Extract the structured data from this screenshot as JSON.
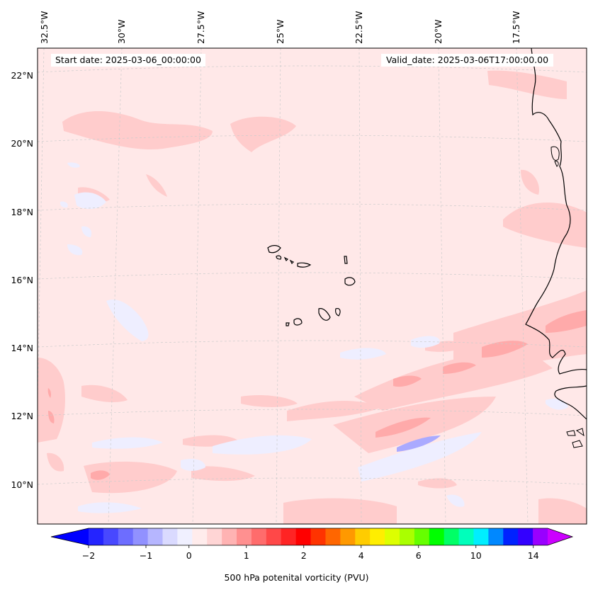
{
  "header": {
    "start_date": "Start date: 2025-03-06_00:00:00",
    "valid_date": "Valid_date: 2025-03-06T17:00:00.00"
  },
  "longitude_labels": [
    "32.5°W",
    "30°W",
    "27.5°W",
    "25°W",
    "22.5°W",
    "20°W",
    "17.5°W"
  ],
  "latitude_labels": [
    "22°N",
    "20°N",
    "18°N",
    "16°N",
    "14°N",
    "12°N",
    "10°N"
  ],
  "colorbar": {
    "label": "500 hPa potenital vorticity (PVU)",
    "tick_labels": [
      "−2",
      "−1",
      "0",
      "1",
      "2",
      "4",
      "6",
      "10",
      "14"
    ],
    "colors": [
      "#0000ff",
      "#2424ff",
      "#4848ff",
      "#6d6dff",
      "#9191ff",
      "#b6b6ff",
      "#dadaff",
      "#f0f0ff",
      "#ffecec",
      "#ffd5d5",
      "#ffb3b3",
      "#ff9090",
      "#ff6c6c",
      "#ff4848",
      "#ff2424",
      "#ff0000",
      "#ff3300",
      "#ff6600",
      "#ff9900",
      "#ffcc00",
      "#ffee00",
      "#ddff00",
      "#aaff00",
      "#66ff00",
      "#00ff00",
      "#00ff66",
      "#00ffbb",
      "#00eeff",
      "#0088ff",
      "#0022ff",
      "#3300ff",
      "#9900ff",
      "#cc00ff"
    ]
  },
  "map": {
    "projection": "Lambert conformal",
    "extent_lon": [
      -33,
      -15
    ],
    "extent_lat": [
      9,
      23
    ],
    "background_color": "#ffe8e8",
    "positive_color": "#ffcccc",
    "stronger_color": "#ffaaaa",
    "negative_color": "#eeeeff",
    "coastline_color": "#000000",
    "gridline_color": "#cccccc"
  }
}
